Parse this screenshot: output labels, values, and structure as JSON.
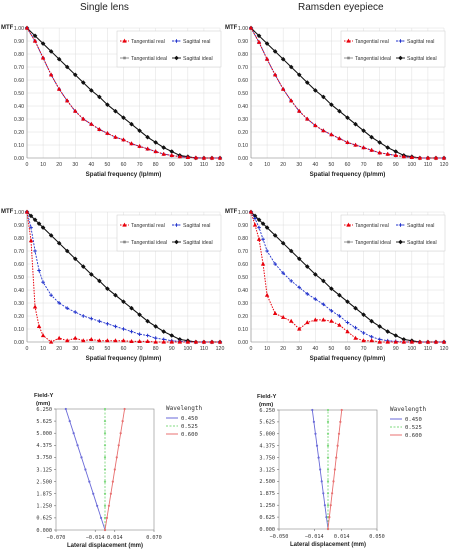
{
  "titles": {
    "left": "Single lens",
    "right": "Ramsden eyepiece"
  },
  "colors": {
    "tangential_real": "#e8000b",
    "sagittal_real": "#2233cc",
    "tangential_ideal": "#888888",
    "sagittal_ideal": "#111111",
    "wl_450": "#6a6ad8",
    "wl_525": "#7ed87e",
    "wl_600": "#e87070"
  },
  "chart_data": [
    {
      "id": "mtf-single-top",
      "type": "line",
      "ylabel": "MTF",
      "xlabel": "Spatial frequency (lp/mm)",
      "xlim": [
        0,
        120
      ],
      "ylim": [
        0,
        1.0
      ],
      "xticks": [
        "0",
        "10",
        "20",
        "30",
        "40",
        "50",
        "60",
        "70",
        "80",
        "90",
        "100",
        "110",
        "120"
      ],
      "yticks": [
        "0.00",
        "0.10",
        "0.20",
        "0.30",
        "0.40",
        "0.50",
        "0.60",
        "0.70",
        "0.80",
        "0.90",
        "1.00"
      ],
      "legend": [
        "Tangential real",
        "Sagittal real",
        "Tangential ideal",
        "Sagittal ideal"
      ],
      "x": [
        0,
        5,
        10,
        15,
        20,
        25,
        30,
        35,
        40,
        45,
        50,
        55,
        60,
        65,
        70,
        75,
        80,
        85,
        90,
        95,
        100,
        105,
        110,
        115,
        120
      ],
      "series": [
        {
          "name": "Tangential real",
          "values": [
            1.0,
            0.9,
            0.77,
            0.64,
            0.53,
            0.44,
            0.36,
            0.3,
            0.26,
            0.22,
            0.19,
            0.16,
            0.14,
            0.11,
            0.09,
            0.07,
            0.05,
            0.03,
            0.02,
            0.01,
            0.005,
            0.002,
            0,
            0,
            0
          ]
        },
        {
          "name": "Sagittal real",
          "values": [
            1.0,
            0.9,
            0.77,
            0.64,
            0.53,
            0.44,
            0.36,
            0.3,
            0.26,
            0.22,
            0.19,
            0.16,
            0.14,
            0.11,
            0.09,
            0.07,
            0.05,
            0.03,
            0.02,
            0.01,
            0.005,
            0.002,
            0,
            0,
            0
          ]
        },
        {
          "name": "Tangential ideal",
          "values": [
            1.0,
            0.94,
            0.88,
            0.82,
            0.76,
            0.7,
            0.64,
            0.58,
            0.52,
            0.47,
            0.41,
            0.36,
            0.31,
            0.26,
            0.21,
            0.16,
            0.12,
            0.08,
            0.05,
            0.02,
            0.01,
            0,
            0,
            0,
            0
          ]
        },
        {
          "name": "Sagittal ideal",
          "values": [
            1.0,
            0.94,
            0.88,
            0.82,
            0.76,
            0.7,
            0.64,
            0.58,
            0.52,
            0.47,
            0.41,
            0.36,
            0.31,
            0.26,
            0.21,
            0.16,
            0.12,
            0.08,
            0.05,
            0.02,
            0.01,
            0,
            0,
            0,
            0
          ]
        }
      ]
    },
    {
      "id": "mtf-ramsden-top",
      "type": "line",
      "ylabel": "MTF",
      "xlabel": "Spatial frequency (lp/mm)",
      "xlim": [
        0,
        120
      ],
      "ylim": [
        0,
        1.0
      ],
      "xticks": [
        "0",
        "10",
        "20",
        "30",
        "40",
        "50",
        "60",
        "70",
        "80",
        "90",
        "100",
        "110",
        "120"
      ],
      "yticks": [
        "0.00",
        "0.10",
        "0.20",
        "0.30",
        "0.40",
        "0.50",
        "0.60",
        "0.70",
        "0.80",
        "0.90",
        "1.00"
      ],
      "legend": [
        "Tangential real",
        "Sagittal real",
        "Tangential ideal",
        "Sagittal ideal"
      ],
      "x": [
        0,
        5,
        10,
        15,
        20,
        25,
        30,
        35,
        40,
        45,
        50,
        55,
        60,
        65,
        70,
        75,
        80,
        85,
        90,
        95,
        100,
        105,
        110,
        115,
        120
      ],
      "series": [
        {
          "name": "Tangential real",
          "values": [
            1.0,
            0.89,
            0.76,
            0.64,
            0.53,
            0.44,
            0.36,
            0.3,
            0.25,
            0.21,
            0.18,
            0.15,
            0.12,
            0.1,
            0.08,
            0.06,
            0.04,
            0.03,
            0.02,
            0.01,
            0.005,
            0,
            0,
            0,
            0
          ]
        },
        {
          "name": "Sagittal real",
          "values": [
            1.0,
            0.89,
            0.76,
            0.64,
            0.53,
            0.44,
            0.36,
            0.3,
            0.25,
            0.21,
            0.18,
            0.15,
            0.12,
            0.1,
            0.08,
            0.06,
            0.04,
            0.03,
            0.02,
            0.01,
            0.005,
            0,
            0,
            0,
            0
          ]
        },
        {
          "name": "Tangential ideal",
          "values": [
            1.0,
            0.94,
            0.88,
            0.82,
            0.76,
            0.7,
            0.64,
            0.58,
            0.52,
            0.47,
            0.41,
            0.36,
            0.31,
            0.26,
            0.21,
            0.16,
            0.12,
            0.08,
            0.05,
            0.02,
            0.01,
            0,
            0,
            0,
            0
          ]
        },
        {
          "name": "Sagittal ideal",
          "values": [
            1.0,
            0.94,
            0.88,
            0.82,
            0.76,
            0.7,
            0.64,
            0.58,
            0.52,
            0.47,
            0.41,
            0.36,
            0.31,
            0.26,
            0.21,
            0.16,
            0.12,
            0.08,
            0.05,
            0.02,
            0.01,
            0,
            0,
            0,
            0
          ]
        }
      ]
    },
    {
      "id": "mtf-single-bottom",
      "type": "line",
      "ylabel": "MTF",
      "xlabel": "Spatial frequency (lp/mm)",
      "xlim": [
        0,
        120
      ],
      "ylim": [
        0,
        1.0
      ],
      "xticks": [
        "0",
        "10",
        "20",
        "30",
        "40",
        "50",
        "60",
        "70",
        "80",
        "90",
        "100",
        "110",
        "120"
      ],
      "yticks": [
        "0.00",
        "0.10",
        "0.20",
        "0.30",
        "0.40",
        "0.50",
        "0.60",
        "0.70",
        "0.80",
        "0.90",
        "1.00"
      ],
      "legend": [
        "Tangential real",
        "Sagittal real",
        "Tangential ideal",
        "Sagittal ideal"
      ],
      "x": [
        0,
        2.5,
        5,
        7.5,
        10,
        15,
        20,
        25,
        30,
        35,
        40,
        45,
        50,
        55,
        60,
        65,
        70,
        75,
        80,
        85,
        90,
        95,
        100,
        105,
        110,
        115,
        120
      ],
      "series": [
        {
          "name": "Tangential real",
          "values": [
            1.0,
            0.78,
            0.27,
            0.12,
            0.05,
            0.0,
            0.03,
            0.01,
            0.03,
            0.01,
            0.02,
            0.01,
            0.01,
            0.01,
            0.01,
            0.005,
            0.005,
            0.005,
            0,
            0,
            0,
            0,
            0,
            0,
            0,
            0,
            0
          ]
        },
        {
          "name": "Sagittal real",
          "values": [
            1.0,
            0.88,
            0.7,
            0.55,
            0.46,
            0.36,
            0.3,
            0.26,
            0.23,
            0.2,
            0.18,
            0.16,
            0.14,
            0.12,
            0.1,
            0.08,
            0.06,
            0.05,
            0.03,
            0.02,
            0.01,
            0.005,
            0,
            0,
            0,
            0,
            0
          ]
        },
        {
          "name": "Tangential ideal",
          "values": [
            1.0,
            0.97,
            0.94,
            0.91,
            0.88,
            0.82,
            0.76,
            0.7,
            0.64,
            0.58,
            0.52,
            0.47,
            0.41,
            0.36,
            0.31,
            0.26,
            0.21,
            0.16,
            0.12,
            0.08,
            0.05,
            0.02,
            0.01,
            0,
            0,
            0,
            0
          ]
        },
        {
          "name": "Sagittal ideal",
          "values": [
            1.0,
            0.97,
            0.94,
            0.91,
            0.88,
            0.82,
            0.76,
            0.7,
            0.64,
            0.58,
            0.52,
            0.47,
            0.41,
            0.36,
            0.31,
            0.26,
            0.21,
            0.16,
            0.12,
            0.08,
            0.05,
            0.02,
            0.01,
            0,
            0,
            0,
            0
          ]
        }
      ]
    },
    {
      "id": "mtf-ramsden-bottom",
      "type": "line",
      "ylabel": "MTF",
      "xlabel": "Spatial frequency (lp/mm)",
      "xlim": [
        0,
        120
      ],
      "ylim": [
        0,
        1.0
      ],
      "xticks": [
        "0",
        "10",
        "20",
        "30",
        "40",
        "50",
        "60",
        "70",
        "80",
        "90",
        "100",
        "110",
        "120"
      ],
      "yticks": [
        "0.00",
        "0.10",
        "0.20",
        "0.30",
        "0.40",
        "0.50",
        "0.60",
        "0.70",
        "0.80",
        "0.90",
        "1.00"
      ],
      "legend": [
        "Tangential real",
        "Sagittal real",
        "Tangential ideal",
        "Sagittal ideal"
      ],
      "x": [
        0,
        2.5,
        5,
        7.5,
        10,
        15,
        20,
        25,
        30,
        35,
        40,
        45,
        50,
        55,
        60,
        65,
        70,
        75,
        80,
        85,
        90,
        95,
        100,
        105,
        110,
        115,
        120
      ],
      "series": [
        {
          "name": "Tangential real",
          "values": [
            1.0,
            0.9,
            0.79,
            0.6,
            0.36,
            0.22,
            0.19,
            0.16,
            0.1,
            0.15,
            0.17,
            0.17,
            0.16,
            0.13,
            0.08,
            0.03,
            0.01,
            0.01,
            0,
            0,
            0,
            0,
            0,
            0,
            0,
            0,
            0
          ]
        },
        {
          "name": "Sagittal real",
          "values": [
            1.0,
            0.95,
            0.88,
            0.79,
            0.7,
            0.6,
            0.53,
            0.47,
            0.42,
            0.37,
            0.33,
            0.29,
            0.24,
            0.2,
            0.15,
            0.11,
            0.07,
            0.04,
            0.02,
            0.01,
            0.005,
            0,
            0,
            0,
            0,
            0,
            0
          ]
        },
        {
          "name": "Tangential ideal",
          "values": [
            1.0,
            0.97,
            0.94,
            0.91,
            0.88,
            0.82,
            0.76,
            0.7,
            0.64,
            0.58,
            0.52,
            0.47,
            0.41,
            0.36,
            0.31,
            0.26,
            0.21,
            0.16,
            0.12,
            0.08,
            0.05,
            0.02,
            0.01,
            0,
            0,
            0,
            0
          ]
        },
        {
          "name": "Sagittal ideal",
          "values": [
            1.0,
            0.97,
            0.94,
            0.91,
            0.88,
            0.82,
            0.76,
            0.7,
            0.64,
            0.58,
            0.52,
            0.47,
            0.41,
            0.36,
            0.31,
            0.26,
            0.21,
            0.16,
            0.12,
            0.08,
            0.05,
            0.02,
            0.01,
            0,
            0,
            0,
            0
          ]
        }
      ]
    },
    {
      "id": "lateral-single",
      "type": "line",
      "ylabel": "Field-Y",
      "yunit": "(mm)",
      "xlabel": "Lateral displacement (mm)",
      "xlim": [
        -0.07,
        0.07
      ],
      "ylim": [
        0,
        6.25
      ],
      "xticks": [
        "−0.070",
        "−0.014",
        "0.014",
        "0.070"
      ],
      "xtick_values": [
        -0.07,
        -0.014,
        0.014,
        0.07
      ],
      "yticks": [
        "0.000",
        "0.625",
        "1.250",
        "1.875",
        "2.500",
        "3.125",
        "3.750",
        "4.375",
        "5.000",
        "5.625",
        "6.250"
      ],
      "legend_title": "Wavelength",
      "legend": [
        "0.450",
        "0.525",
        "0.600"
      ],
      "y": [
        0,
        0.625,
        1.25,
        1.875,
        2.5,
        3.125,
        3.75,
        4.375,
        5.0,
        5.625,
        6.25
      ],
      "series": [
        {
          "name": "0.450",
          "x": [
            0,
            -0.0056,
            -0.0112,
            -0.0168,
            -0.0224,
            -0.028,
            -0.0336,
            -0.0392,
            -0.0448,
            -0.0504,
            -0.056
          ]
        },
        {
          "name": "0.525",
          "x": [
            0,
            0,
            0,
            0,
            0,
            0,
            0,
            0,
            0,
            0,
            0
          ]
        },
        {
          "name": "0.600",
          "x": [
            0,
            0.0028,
            0.0056,
            0.0084,
            0.0112,
            0.014,
            0.0168,
            0.0196,
            0.0224,
            0.0252,
            0.028
          ]
        }
      ]
    },
    {
      "id": "lateral-ramsden",
      "type": "line",
      "ylabel": "Field-Y",
      "yunit": "(mm)",
      "xlabel": "Lateral displacement (mm)",
      "xlim": [
        -0.07,
        0.07
      ],
      "ylim": [
        0,
        6.25
      ],
      "xticks": [
        "−0.050",
        "−0.014",
        "0.014",
        "0.050"
      ],
      "xtick_values": [
        -0.05,
        -0.014,
        0.014,
        0.05
      ],
      "yticks": [
        "0.000",
        "0.625",
        "1.250",
        "1.875",
        "2.500",
        "3.125",
        "3.750",
        "4.375",
        "5.000",
        "5.625",
        "6.250"
      ],
      "legend_title": "Wavelength",
      "legend": [
        "0.450",
        "0.525",
        "0.600"
      ],
      "y": [
        0,
        0.625,
        1.25,
        1.875,
        2.5,
        3.125,
        3.75,
        4.375,
        5.0,
        5.625,
        6.25
      ],
      "series": [
        {
          "name": "0.450",
          "x": [
            0,
            -0.0016,
            -0.0032,
            -0.0048,
            -0.0064,
            -0.008,
            -0.0096,
            -0.0112,
            -0.0128,
            -0.0144,
            -0.016
          ]
        },
        {
          "name": "0.525",
          "x": [
            0,
            0,
            0,
            0,
            0,
            0,
            0,
            0,
            0,
            0,
            0
          ]
        },
        {
          "name": "0.600",
          "x": [
            0,
            0.0014,
            0.0028,
            0.0042,
            0.0056,
            0.007,
            0.0084,
            0.0098,
            0.0112,
            0.0126,
            0.014
          ]
        }
      ]
    }
  ]
}
